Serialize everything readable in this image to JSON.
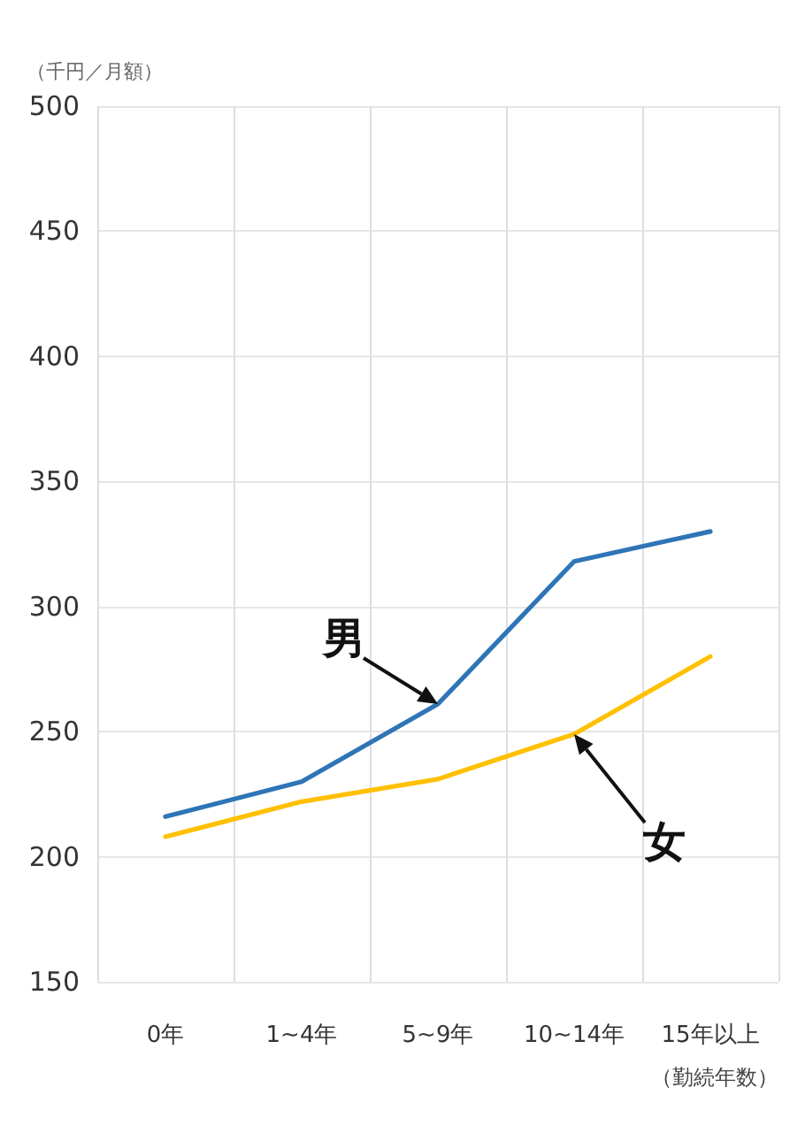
{
  "chart_data": {
    "type": "line",
    "xlabel": "（勤続年数）",
    "ylabel": "（千円／月額）",
    "categories": [
      "0年",
      "1~4年",
      "5~9年",
      "10~14年",
      "15年以上"
    ],
    "series": [
      {
        "name": "男",
        "color": "#2e75b6",
        "values": [
          216,
          230,
          261,
          318,
          330
        ]
      },
      {
        "name": "女",
        "color": "#ffc000",
        "values": [
          208,
          222,
          231,
          249,
          280
        ]
      }
    ],
    "ylim": [
      150,
      500
    ],
    "yticks": [
      150,
      200,
      250,
      300,
      350,
      400,
      450,
      500
    ],
    "grid": true,
    "legend": false,
    "marker": "none",
    "line_style": "solid"
  }
}
